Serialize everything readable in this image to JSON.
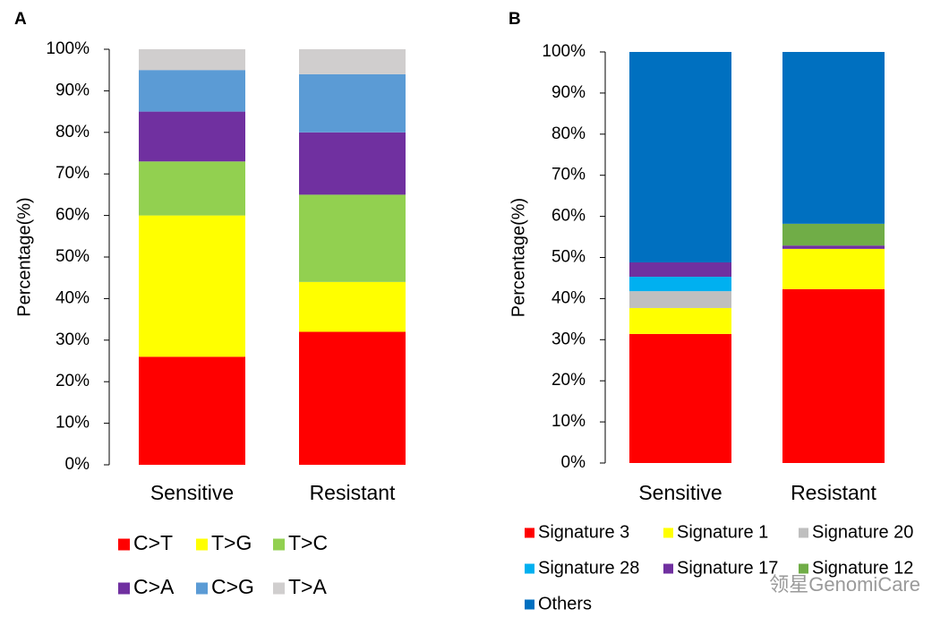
{
  "chart_data": [
    {
      "type": "bar",
      "stacked": true,
      "panel": "A",
      "ylabel": "Percentage(%)",
      "categories": [
        "Sensitive",
        "Resistant"
      ],
      "series": [
        {
          "name": "C>T",
          "color": "#ff0000",
          "values": [
            26,
            32
          ]
        },
        {
          "name": "T>G",
          "color": "#ffff00",
          "values": [
            34,
            12
          ]
        },
        {
          "name": "T>C",
          "color": "#92d050",
          "values": [
            13,
            21
          ]
        },
        {
          "name": "C>A",
          "color": "#7030a0",
          "values": [
            12,
            15
          ]
        },
        {
          "name": "C>G",
          "color": "#5b9bd5",
          "values": [
            10,
            14
          ]
        },
        {
          "name": "T>A",
          "color": "#d0cece",
          "values": [
            5,
            6
          ]
        }
      ],
      "ylim": [
        0,
        100
      ],
      "yticks": [
        {
          "value": 0,
          "label": "0%"
        },
        {
          "value": 10,
          "label": "10%"
        },
        {
          "value": 20,
          "label": "20%"
        },
        {
          "value": 30,
          "label": "30%"
        },
        {
          "value": 40,
          "label": "40%"
        },
        {
          "value": 50,
          "label": "50%"
        },
        {
          "value": 60,
          "label": "60%"
        },
        {
          "value": 70,
          "label": "70%"
        },
        {
          "value": 80,
          "label": "80%"
        },
        {
          "value": 90,
          "label": "90%"
        },
        {
          "value": 100,
          "label": "100%"
        }
      ],
      "grid": false,
      "legend": "bottom"
    },
    {
      "type": "bar",
      "stacked": true,
      "panel": "B",
      "ylabel": "Percentage(%)",
      "categories": [
        "Sensitive",
        "Resistant"
      ],
      "series": [
        {
          "name": "Signature 3",
          "color": "#ff0000",
          "values": [
            31.4,
            42.3
          ]
        },
        {
          "name": "Signature 1",
          "color": "#ffff00",
          "values": [
            6.3,
            9.8
          ]
        },
        {
          "name": "Signature 20",
          "color": "#bfbfbf",
          "values": [
            4.1,
            0
          ]
        },
        {
          "name": "Signature 28",
          "color": "#00b0f0",
          "values": [
            3.5,
            0
          ]
        },
        {
          "name": "Signature 17",
          "color": "#7030a0",
          "values": [
            3.5,
            0.8
          ]
        },
        {
          "name": "Signature 12",
          "color": "#70ad47",
          "values": [
            0,
            5.3
          ]
        },
        {
          "name": "Others",
          "color": "#0070c0",
          "values": [
            51.2,
            41.8
          ]
        }
      ],
      "ylim": [
        0,
        100
      ],
      "yticks": [
        {
          "value": 0,
          "label": "0%"
        },
        {
          "value": 10,
          "label": "10%"
        },
        {
          "value": 20,
          "label": "20%"
        },
        {
          "value": 30,
          "label": "30%"
        },
        {
          "value": 40,
          "label": "40%"
        },
        {
          "value": 50,
          "label": "50%"
        },
        {
          "value": 60,
          "label": "60%"
        },
        {
          "value": 70,
          "label": "70%"
        },
        {
          "value": 80,
          "label": "80%"
        },
        {
          "value": 90,
          "label": "90%"
        },
        {
          "value": 100,
          "label": "100%"
        }
      ],
      "grid": false,
      "legend": "bottom"
    }
  ],
  "watermark": "领星GenomiCare"
}
